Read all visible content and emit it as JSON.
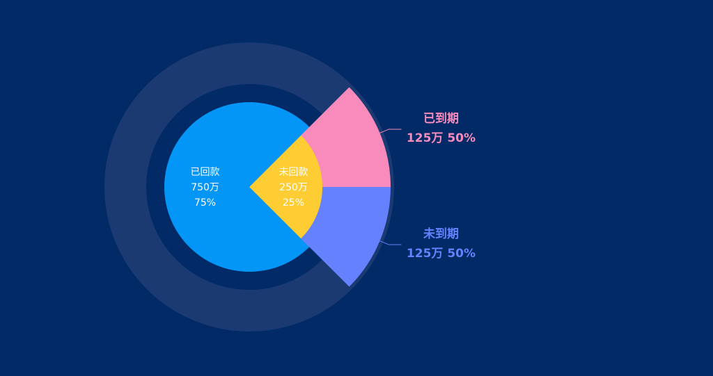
{
  "colors": {
    "background": "#012a67",
    "track": "#1b3a72"
  },
  "chart_data": [
    {
      "type": "pie",
      "title": "",
      "series": [
        {
          "name": "已回款",
          "value": 750,
          "value_label": "750万",
          "percent_label": "75%",
          "color": "#0496f7"
        },
        {
          "name": "未回款",
          "value": 250,
          "value_label": "250万",
          "percent_label": "25%",
          "color": "#fdcd33"
        }
      ]
    },
    {
      "type": "pie",
      "title": "",
      "series": [
        {
          "name": "已到期",
          "value": 125,
          "value_label": "125万",
          "percent_label": "50%",
          "color": "#f88bbc"
        },
        {
          "name": "未到期",
          "value": 125,
          "value_label": "125万",
          "percent_label": "50%",
          "color": "#6581fe"
        }
      ]
    }
  ]
}
